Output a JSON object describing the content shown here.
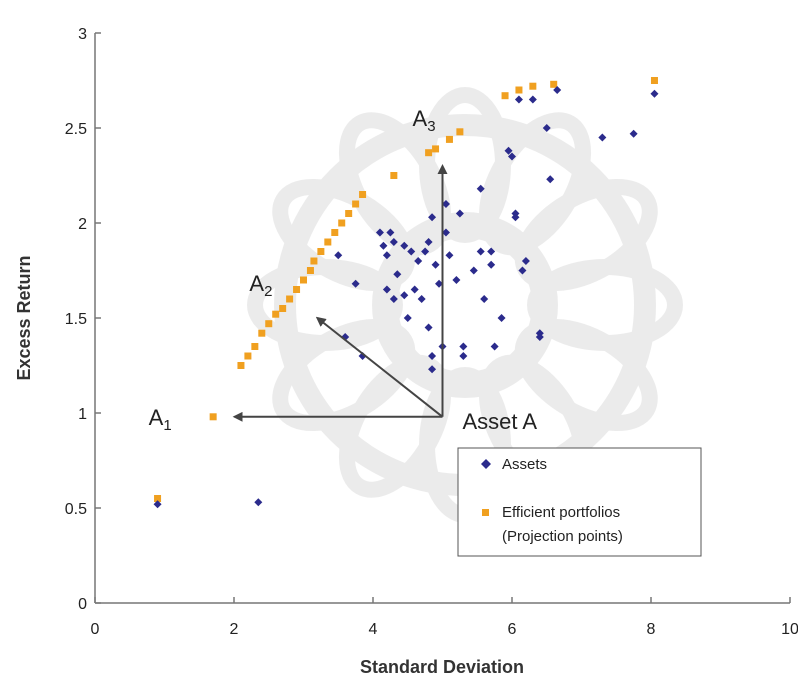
{
  "chart_data": {
    "type": "scatter",
    "title": "",
    "xlabel": "Standard Deviation",
    "ylabel": "Excess Return",
    "xlim": [
      0,
      10
    ],
    "ylim": [
      0,
      3
    ],
    "x_ticks": [
      "0",
      "2",
      "4",
      "6",
      "8",
      "10"
    ],
    "y_ticks": [
      "0",
      "0.5",
      "1",
      "1.5",
      "2",
      "2.5",
      "3"
    ],
    "grid": false,
    "legend": {
      "placement": "lower-right",
      "entries": [
        "Assets",
        "Efficient portfolios",
        "(Projection points)"
      ]
    },
    "colors": {
      "assets": "#2b2b8c",
      "efficient": "#f0a020",
      "arrows": "#444444"
    },
    "series": [
      {
        "name": "Assets",
        "marker": "diamond",
        "points": [
          [
            0.9,
            0.52
          ],
          [
            2.35,
            0.53
          ],
          [
            3.5,
            1.83
          ],
          [
            3.6,
            1.4
          ],
          [
            3.75,
            1.68
          ],
          [
            3.85,
            1.3
          ],
          [
            4.1,
            1.95
          ],
          [
            4.15,
            1.88
          ],
          [
            4.25,
            1.95
          ],
          [
            4.2,
            1.83
          ],
          [
            4.3,
            1.9
          ],
          [
            4.35,
            1.73
          ],
          [
            4.2,
            1.65
          ],
          [
            4.3,
            1.6
          ],
          [
            4.45,
            1.88
          ],
          [
            4.45,
            1.62
          ],
          [
            4.5,
            1.5
          ],
          [
            4.6,
            1.65
          ],
          [
            4.55,
            1.85
          ],
          [
            4.65,
            1.8
          ],
          [
            4.75,
            1.85
          ],
          [
            4.7,
            1.6
          ],
          [
            4.8,
            1.45
          ],
          [
            4.85,
            1.3
          ],
          [
            4.85,
            1.23
          ],
          [
            4.8,
            1.9
          ],
          [
            4.85,
            2.03
          ],
          [
            4.9,
            1.78
          ],
          [
            4.95,
            1.68
          ],
          [
            5.0,
            1.35
          ],
          [
            5.05,
            2.1
          ],
          [
            5.05,
            1.95
          ],
          [
            5.1,
            1.83
          ],
          [
            5.2,
            1.7
          ],
          [
            5.25,
            2.05
          ],
          [
            5.3,
            1.35
          ],
          [
            5.3,
            1.3
          ],
          [
            5.45,
            1.75
          ],
          [
            5.55,
            2.18
          ],
          [
            5.55,
            1.85
          ],
          [
            5.6,
            1.6
          ],
          [
            5.7,
            1.78
          ],
          [
            5.7,
            1.85
          ],
          [
            5.75,
            1.35
          ],
          [
            5.85,
            1.5
          ],
          [
            5.95,
            2.38
          ],
          [
            6.0,
            2.35
          ],
          [
            6.05,
            2.05
          ],
          [
            6.05,
            2.03
          ],
          [
            6.1,
            2.65
          ],
          [
            6.15,
            1.75
          ],
          [
            6.2,
            1.8
          ],
          [
            6.3,
            2.65
          ],
          [
            6.4,
            1.42
          ],
          [
            6.4,
            1.4
          ],
          [
            6.5,
            2.5
          ],
          [
            6.55,
            2.23
          ],
          [
            6.65,
            2.7
          ],
          [
            7.3,
            2.45
          ],
          [
            7.75,
            2.47
          ],
          [
            8.05,
            2.68
          ]
        ]
      },
      {
        "name": "Efficient portfolios",
        "marker": "square",
        "points": [
          [
            0.9,
            0.55
          ],
          [
            1.7,
            0.98
          ],
          [
            2.1,
            1.25
          ],
          [
            2.2,
            1.3
          ],
          [
            2.3,
            1.35
          ],
          [
            2.4,
            1.42
          ],
          [
            2.5,
            1.47
          ],
          [
            2.6,
            1.52
          ],
          [
            2.7,
            1.55
          ],
          [
            2.8,
            1.6
          ],
          [
            2.9,
            1.65
          ],
          [
            3.0,
            1.7
          ],
          [
            3.1,
            1.75
          ],
          [
            3.15,
            1.8
          ],
          [
            3.25,
            1.85
          ],
          [
            3.35,
            1.9
          ],
          [
            3.45,
            1.95
          ],
          [
            3.55,
            2.0
          ],
          [
            3.65,
            2.05
          ],
          [
            3.75,
            2.1
          ],
          [
            3.85,
            2.15
          ],
          [
            4.3,
            2.25
          ],
          [
            4.8,
            2.37
          ],
          [
            4.9,
            2.39
          ],
          [
            5.1,
            2.44
          ],
          [
            5.25,
            2.48
          ],
          [
            5.9,
            2.67
          ],
          [
            6.1,
            2.7
          ],
          [
            6.3,
            2.72
          ],
          [
            6.6,
            2.73
          ],
          [
            8.05,
            2.75
          ]
        ]
      }
    ],
    "annotations": {
      "asset": {
        "label": "Asset A",
        "x": 5.0,
        "y": 0.98
      },
      "a1": {
        "main": "A",
        "sub": "1",
        "x": 1.75,
        "y": 0.98
      },
      "a2": {
        "main": "A",
        "sub": "2",
        "x": 3.2,
        "y": 1.5
      },
      "a3": {
        "main": "A",
        "sub": "3",
        "x": 5.0,
        "y": 2.3
      }
    }
  }
}
